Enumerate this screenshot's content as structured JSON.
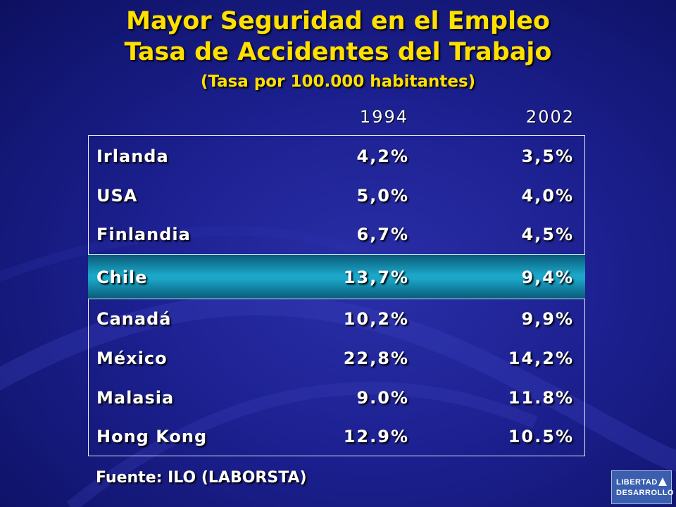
{
  "title": {
    "line1": "Mayor Seguridad en el Empleo",
    "line2": "Tasa de Accidentes del Trabajo",
    "line3": "(Tasa por 100.000 habitantes)"
  },
  "years": [
    "1994",
    "2002"
  ],
  "rows": [
    {
      "country": "Irlanda",
      "v1994": "4,2%",
      "v2002": "3,5%"
    },
    {
      "country": "USA",
      "v1994": "5,0%",
      "v2002": "4,0%"
    },
    {
      "country": "Finlandia",
      "v1994": "6,7%",
      "v2002": "4,5%"
    },
    {
      "country": "Chile",
      "v1994": "13,7%",
      "v2002": "9,4%"
    },
    {
      "country": "Canadá",
      "v1994": "10,2%",
      "v2002": "9,9%"
    },
    {
      "country": "México",
      "v1994": "22,8%",
      "v2002": "14,2%"
    },
    {
      "country": "Malasia",
      "v1994": "9.0%",
      "v2002": "11.8%"
    },
    {
      "country": "Hong Kong",
      "v1994": "12.9%",
      "v2002": "10.5%"
    }
  ],
  "highlight_row": "Chile",
  "source": "Fuente: ILO (LABORSTA)",
  "logo": {
    "line1": "LIBERTAD",
    "line2": "DESARROLLO"
  },
  "colors": {
    "title": "#ffe000",
    "background": "#1c2090",
    "highlight": "#1ba6c8",
    "text": "#ffffff"
  }
}
